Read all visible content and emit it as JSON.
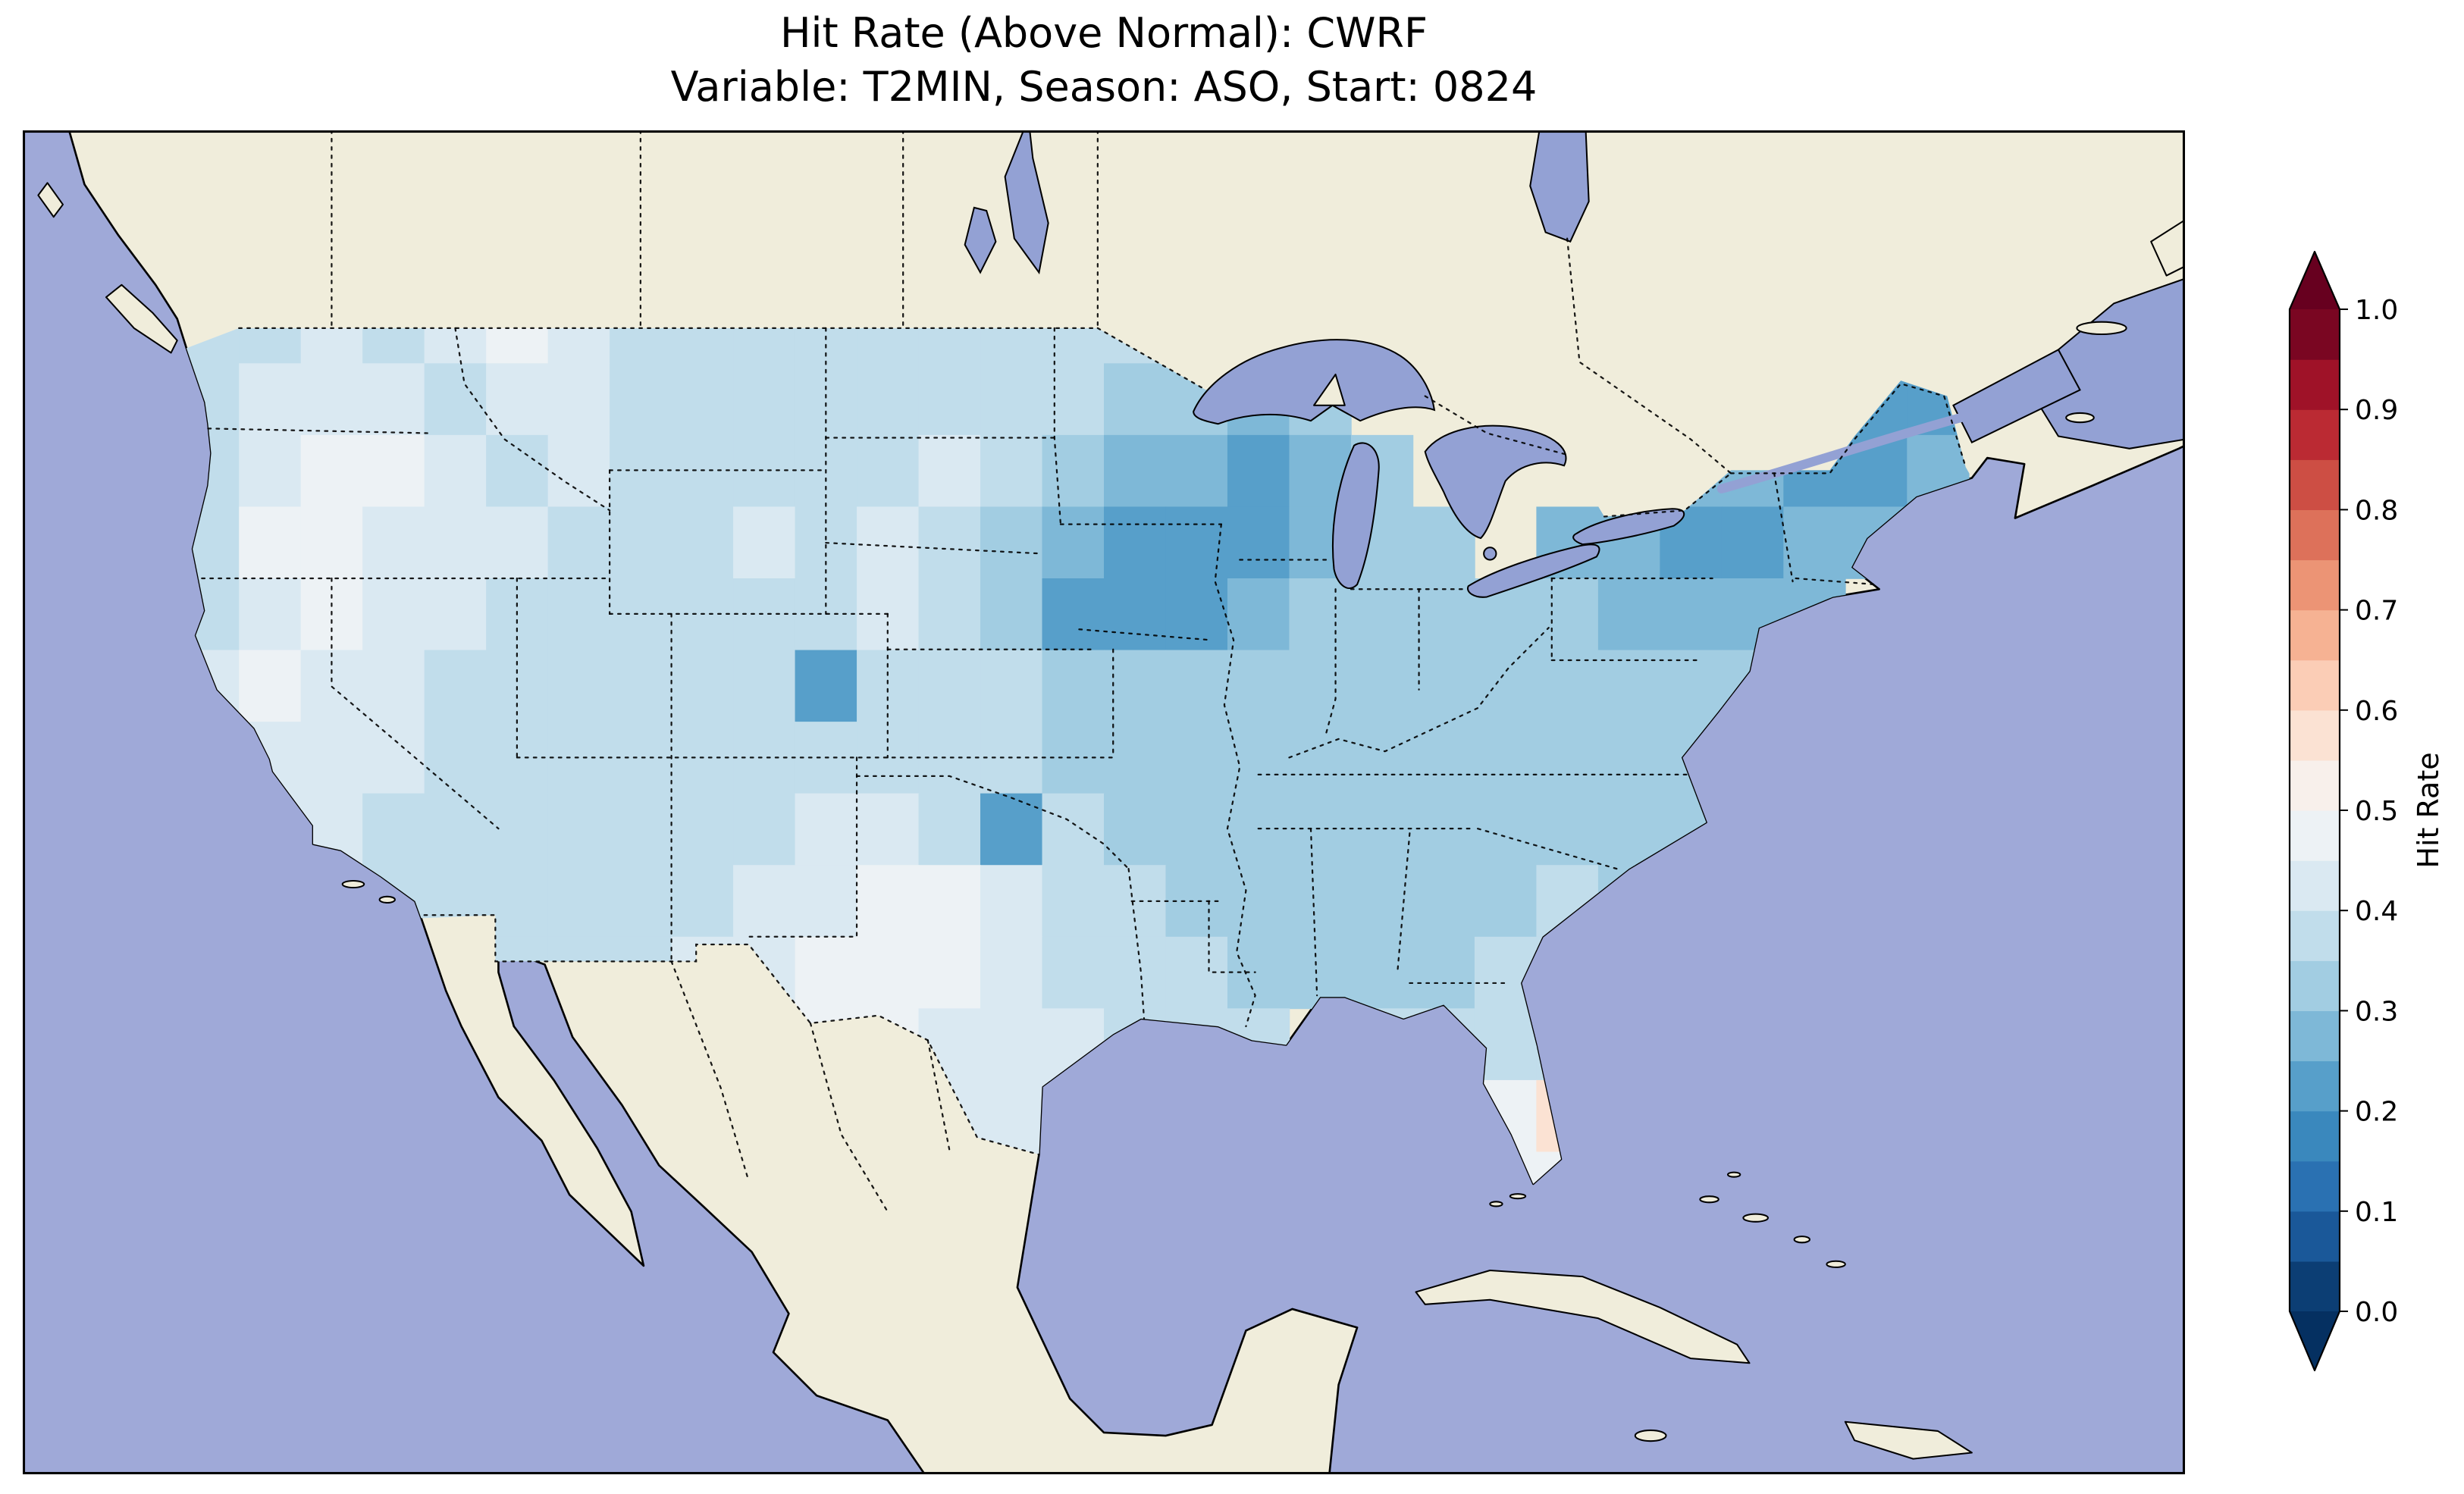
{
  "title": {
    "line1": "Hit Rate (Above Normal): CWRF",
    "line2": "Variable: T2MIN, Season: ASO, Start: 0824"
  },
  "colorbar": {
    "label": "Hit Rate",
    "ticks": [
      "0.0",
      "0.1",
      "0.2",
      "0.3",
      "0.4",
      "0.5",
      "0.6",
      "0.7",
      "0.8",
      "0.9",
      "1.0"
    ],
    "level_step": 0.05,
    "range": [
      0.0,
      1.0
    ],
    "under_color": "#053061",
    "over_color": "#67001f",
    "segment_colors_bottom_up": [
      "#0c3e74",
      "#1a5899",
      "#2a71b2",
      "#3a88bd",
      "#579fca",
      "#7eb8d7",
      "#a2cde2",
      "#c1ddeb",
      "#dae9f2",
      "#edf2f5",
      "#f8f0eb",
      "#fbe2d3",
      "#fbcdb6",
      "#f6b293",
      "#ec9475",
      "#dd715a",
      "#cd4e44",
      "#bb2a33",
      "#9f1228",
      "#7a0622"
    ]
  },
  "map": {
    "ocean_color": "#9fa9d8",
    "land_color": "#f0eddb",
    "lake_color": "#93a1d4",
    "grid": {
      "lon_min": -125,
      "lat_max": 50,
      "cell_deg": 2,
      "rows": [
        [
          0.37,
          0.37,
          0.42,
          0.37,
          0.42,
          0.47,
          0.42,
          0.37,
          0.37,
          0.37,
          0.37,
          0.37,
          0.37,
          0.37,
          0.37,
          0.37,
          0.32,
          0.32,
          null,
          null,
          null,
          null,
          null,
          null,
          null,
          null,
          null,
          null,
          null
        ],
        [
          0.37,
          0.42,
          0.42,
          0.42,
          0.37,
          0.42,
          0.42,
          0.37,
          0.37,
          0.37,
          0.37,
          0.37,
          0.37,
          0.37,
          0.37,
          0.32,
          0.32,
          0.27,
          0.32,
          null,
          null,
          null,
          null,
          null,
          null,
          null,
          null,
          0.22,
          0.22
        ],
        [
          0.37,
          0.42,
          0.47,
          0.47,
          0.42,
          0.37,
          0.42,
          0.37,
          0.37,
          0.37,
          0.37,
          0.37,
          0.42,
          0.37,
          0.32,
          0.27,
          0.27,
          0.22,
          0.27,
          0.32,
          null,
          null,
          null,
          null,
          0.27,
          0.27,
          0.22,
          0.22,
          0.27
        ],
        [
          0.37,
          0.47,
          0.47,
          0.42,
          0.42,
          0.42,
          0.37,
          0.37,
          0.37,
          0.42,
          0.37,
          0.42,
          0.37,
          0.32,
          0.27,
          0.22,
          0.22,
          0.22,
          0.27,
          0.32,
          0.32,
          null,
          0.27,
          0.27,
          0.22,
          0.22,
          0.27,
          0.27,
          null
        ],
        [
          0.37,
          0.42,
          0.47,
          0.42,
          0.42,
          0.37,
          0.37,
          0.37,
          0.37,
          0.37,
          0.37,
          0.42,
          0.37,
          0.32,
          0.22,
          0.22,
          0.22,
          0.27,
          0.32,
          0.32,
          0.32,
          0.32,
          0.32,
          0.27,
          0.27,
          0.27,
          0.27,
          null,
          null
        ],
        [
          0.42,
          0.47,
          0.42,
          0.42,
          0.37,
          0.37,
          0.37,
          0.37,
          0.37,
          0.37,
          0.22,
          0.37,
          0.37,
          0.37,
          0.32,
          0.32,
          0.32,
          0.32,
          0.32,
          0.32,
          0.32,
          0.32,
          0.32,
          0.32,
          0.32,
          0.32,
          null,
          null,
          null
        ],
        [
          0.42,
          0.42,
          0.42,
          0.42,
          0.37,
          0.37,
          0.37,
          0.37,
          0.37,
          0.37,
          0.37,
          0.37,
          0.37,
          0.37,
          0.32,
          0.32,
          0.32,
          0.32,
          0.32,
          0.32,
          0.32,
          0.32,
          0.32,
          0.32,
          0.32,
          null,
          null,
          null,
          null
        ],
        [
          0.37,
          0.42,
          0.42,
          0.37,
          0.37,
          0.37,
          0.37,
          0.37,
          0.37,
          0.37,
          0.42,
          0.42,
          0.37,
          0.22,
          0.37,
          0.32,
          0.32,
          0.32,
          0.32,
          0.32,
          0.32,
          0.32,
          0.32,
          0.32,
          0.32,
          null,
          null,
          null,
          null
        ],
        [
          null,
          0.37,
          0.37,
          0.37,
          0.37,
          0.37,
          0.37,
          0.37,
          0.37,
          0.42,
          0.42,
          0.47,
          0.47,
          0.42,
          0.37,
          0.37,
          0.32,
          0.32,
          0.32,
          0.32,
          0.32,
          0.32,
          0.37,
          0.32,
          null,
          null,
          null,
          null,
          null
        ],
        [
          null,
          null,
          null,
          null,
          null,
          0.37,
          0.37,
          0.37,
          0.42,
          0.42,
          0.47,
          0.47,
          0.47,
          0.42,
          0.37,
          0.37,
          0.37,
          0.32,
          0.32,
          0.32,
          0.32,
          0.37,
          0.37,
          null,
          null,
          null,
          null,
          null,
          null
        ],
        [
          null,
          null,
          null,
          null,
          null,
          null,
          null,
          null,
          0.42,
          0.42,
          0.47,
          0.47,
          0.42,
          0.42,
          0.42,
          0.37,
          0.37,
          0.37,
          null,
          0.37,
          0.37,
          0.37,
          0.37,
          null,
          null,
          null,
          null,
          null,
          null
        ],
        [
          null,
          null,
          null,
          null,
          null,
          null,
          null,
          null,
          null,
          null,
          null,
          null,
          0.42,
          0.42,
          0.42,
          null,
          null,
          null,
          null,
          null,
          0.47,
          0.47,
          0.57,
          null,
          null,
          null,
          null,
          null,
          null
        ],
        [
          null,
          null,
          null,
          null,
          null,
          null,
          null,
          null,
          null,
          null,
          null,
          null,
          null,
          0.42,
          null,
          null,
          null,
          null,
          null,
          null,
          null,
          0.47,
          0.47,
          null,
          null,
          null,
          null,
          null,
          null
        ]
      ]
    }
  }
}
